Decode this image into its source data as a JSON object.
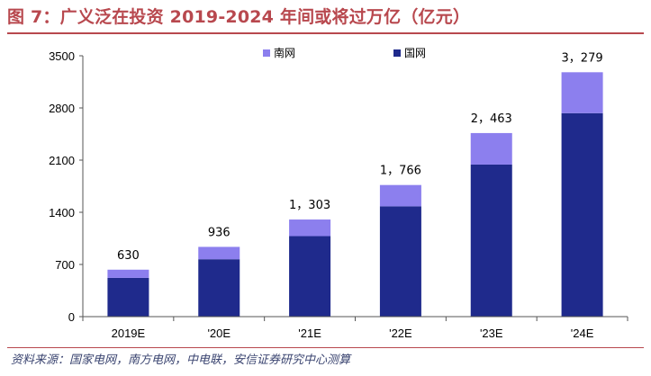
{
  "header": {
    "title": "图 7：广义泛在投资 2019-2024 年间或将过万亿（亿元）"
  },
  "footer": {
    "source": "资料来源：国家电网，南方电网，中电联，安信证券研究中心测算"
  },
  "chart_data": {
    "type": "bar",
    "stacked": true,
    "categories": [
      "2019E",
      "'20E",
      "'21E",
      "'22E",
      "'23E",
      "'24E"
    ],
    "series": [
      {
        "name": "国网",
        "color": "#1f2a8c",
        "values": [
          520,
          770,
          1080,
          1480,
          2040,
          2730
        ]
      },
      {
        "name": "南网",
        "color": "#8c7fee",
        "values": [
          110,
          166,
          223,
          286,
          423,
          549
        ]
      }
    ],
    "totals": [
      630,
      936,
      1303,
      1766,
      2463,
      3279
    ],
    "total_labels": [
      "630",
      "936",
      "1，303",
      "1，766",
      "2，463",
      "3，279"
    ],
    "ylim": [
      0,
      3500
    ],
    "yticks": [
      0,
      700,
      1400,
      2100,
      2800,
      3500
    ],
    "xlabel": "",
    "ylabel": "",
    "grid": false,
    "legend_position": "top-center"
  }
}
